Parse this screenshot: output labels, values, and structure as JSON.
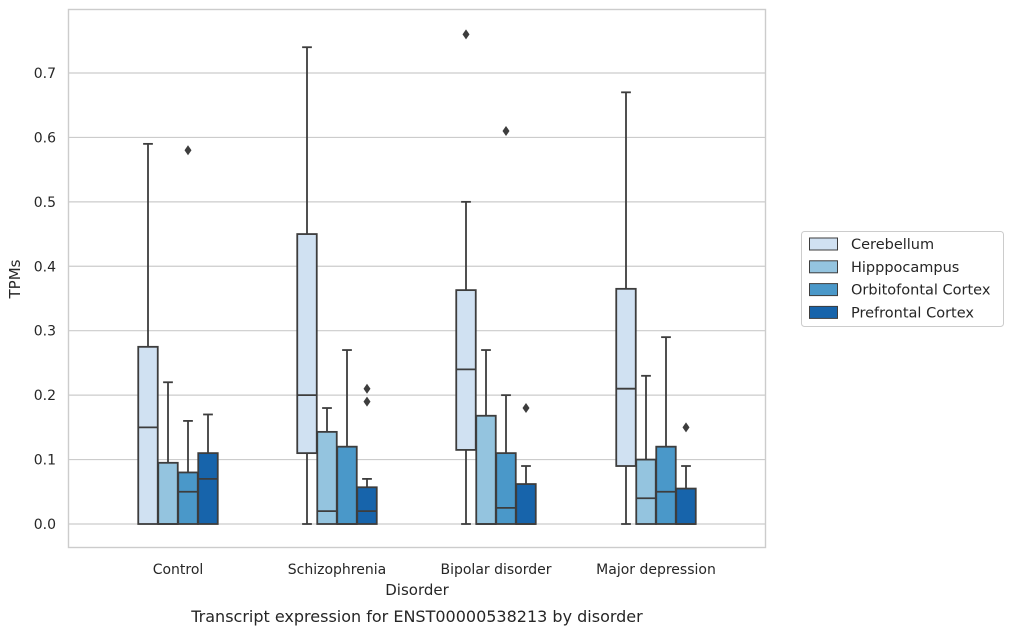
{
  "chart_data": {
    "type": "box",
    "xlabel": "Disorder",
    "ylabel": "TPMs",
    "caption": "Transcript expression for ENST00000538213 by disorder",
    "categories": [
      "Control",
      "Schizophrenia",
      "Bipolar disorder",
      "Major depression"
    ],
    "ylim": [
      -0.037,
      0.8
    ],
    "yticks": [
      0.0,
      0.1,
      0.2,
      0.3,
      0.4,
      0.5,
      0.6,
      0.7
    ],
    "ytick_labels": [
      "0.0",
      "0.1",
      "0.2",
      "0.3",
      "0.4",
      "0.5",
      "0.6",
      "0.7"
    ],
    "grid": true,
    "legend_position": "right",
    "series": [
      {
        "name": "Cerebellum",
        "color": "#d0e1f2",
        "boxes": [
          {
            "whislo": 0.0,
            "q1": 0.0,
            "med": 0.15,
            "q3": 0.275,
            "whishi": 0.59,
            "fliers": []
          },
          {
            "whislo": 0.0,
            "q1": 0.11,
            "med": 0.2,
            "q3": 0.45,
            "whishi": 0.74,
            "fliers": []
          },
          {
            "whislo": 0.0,
            "q1": 0.115,
            "med": 0.24,
            "q3": 0.363,
            "whishi": 0.5,
            "fliers": [
              0.76
            ]
          },
          {
            "whislo": 0.0,
            "q1": 0.09,
            "med": 0.21,
            "q3": 0.365,
            "whishi": 0.67,
            "fliers": []
          }
        ]
      },
      {
        "name": "Hipppocampus",
        "color": "#94c4df",
        "boxes": [
          {
            "whislo": 0.0,
            "q1": 0.0,
            "med": 0.0,
            "q3": 0.095,
            "whishi": 0.22,
            "fliers": []
          },
          {
            "whislo": 0.0,
            "q1": 0.0,
            "med": 0.02,
            "q3": 0.143,
            "whishi": 0.18,
            "fliers": []
          },
          {
            "whislo": 0.0,
            "q1": 0.0,
            "med": 0.0,
            "q3": 0.168,
            "whishi": 0.27,
            "fliers": []
          },
          {
            "whislo": 0.0,
            "q1": 0.0,
            "med": 0.04,
            "q3": 0.1,
            "whishi": 0.23,
            "fliers": []
          }
        ]
      },
      {
        "name": "Orbitofontal Cortex",
        "color": "#4a98c9",
        "boxes": [
          {
            "whislo": 0.0,
            "q1": 0.0,
            "med": 0.05,
            "q3": 0.08,
            "whishi": 0.16,
            "fliers": [
              0.58
            ]
          },
          {
            "whislo": 0.0,
            "q1": 0.0,
            "med": 0.0,
            "q3": 0.12,
            "whishi": 0.27,
            "fliers": []
          },
          {
            "whislo": 0.0,
            "q1": 0.0,
            "med": 0.025,
            "q3": 0.11,
            "whishi": 0.2,
            "fliers": [
              0.61
            ]
          },
          {
            "whislo": 0.0,
            "q1": 0.0,
            "med": 0.05,
            "q3": 0.12,
            "whishi": 0.29,
            "fliers": []
          }
        ]
      },
      {
        "name": "Prefrontal Cortex",
        "color": "#1764ab",
        "boxes": [
          {
            "whislo": 0.0,
            "q1": 0.0,
            "med": 0.07,
            "q3": 0.11,
            "whishi": 0.17,
            "fliers": []
          },
          {
            "whislo": 0.0,
            "q1": 0.0,
            "med": 0.02,
            "q3": 0.057,
            "whishi": 0.07,
            "fliers": [
              0.19,
              0.21
            ]
          },
          {
            "whislo": 0.0,
            "q1": 0.0,
            "med": 0.0,
            "q3": 0.062,
            "whishi": 0.09,
            "fliers": [
              0.18
            ]
          },
          {
            "whislo": 0.0,
            "q1": 0.0,
            "med": 0.0,
            "q3": 0.055,
            "whishi": 0.09,
            "fliers": [
              0.15
            ]
          }
        ]
      }
    ]
  }
}
